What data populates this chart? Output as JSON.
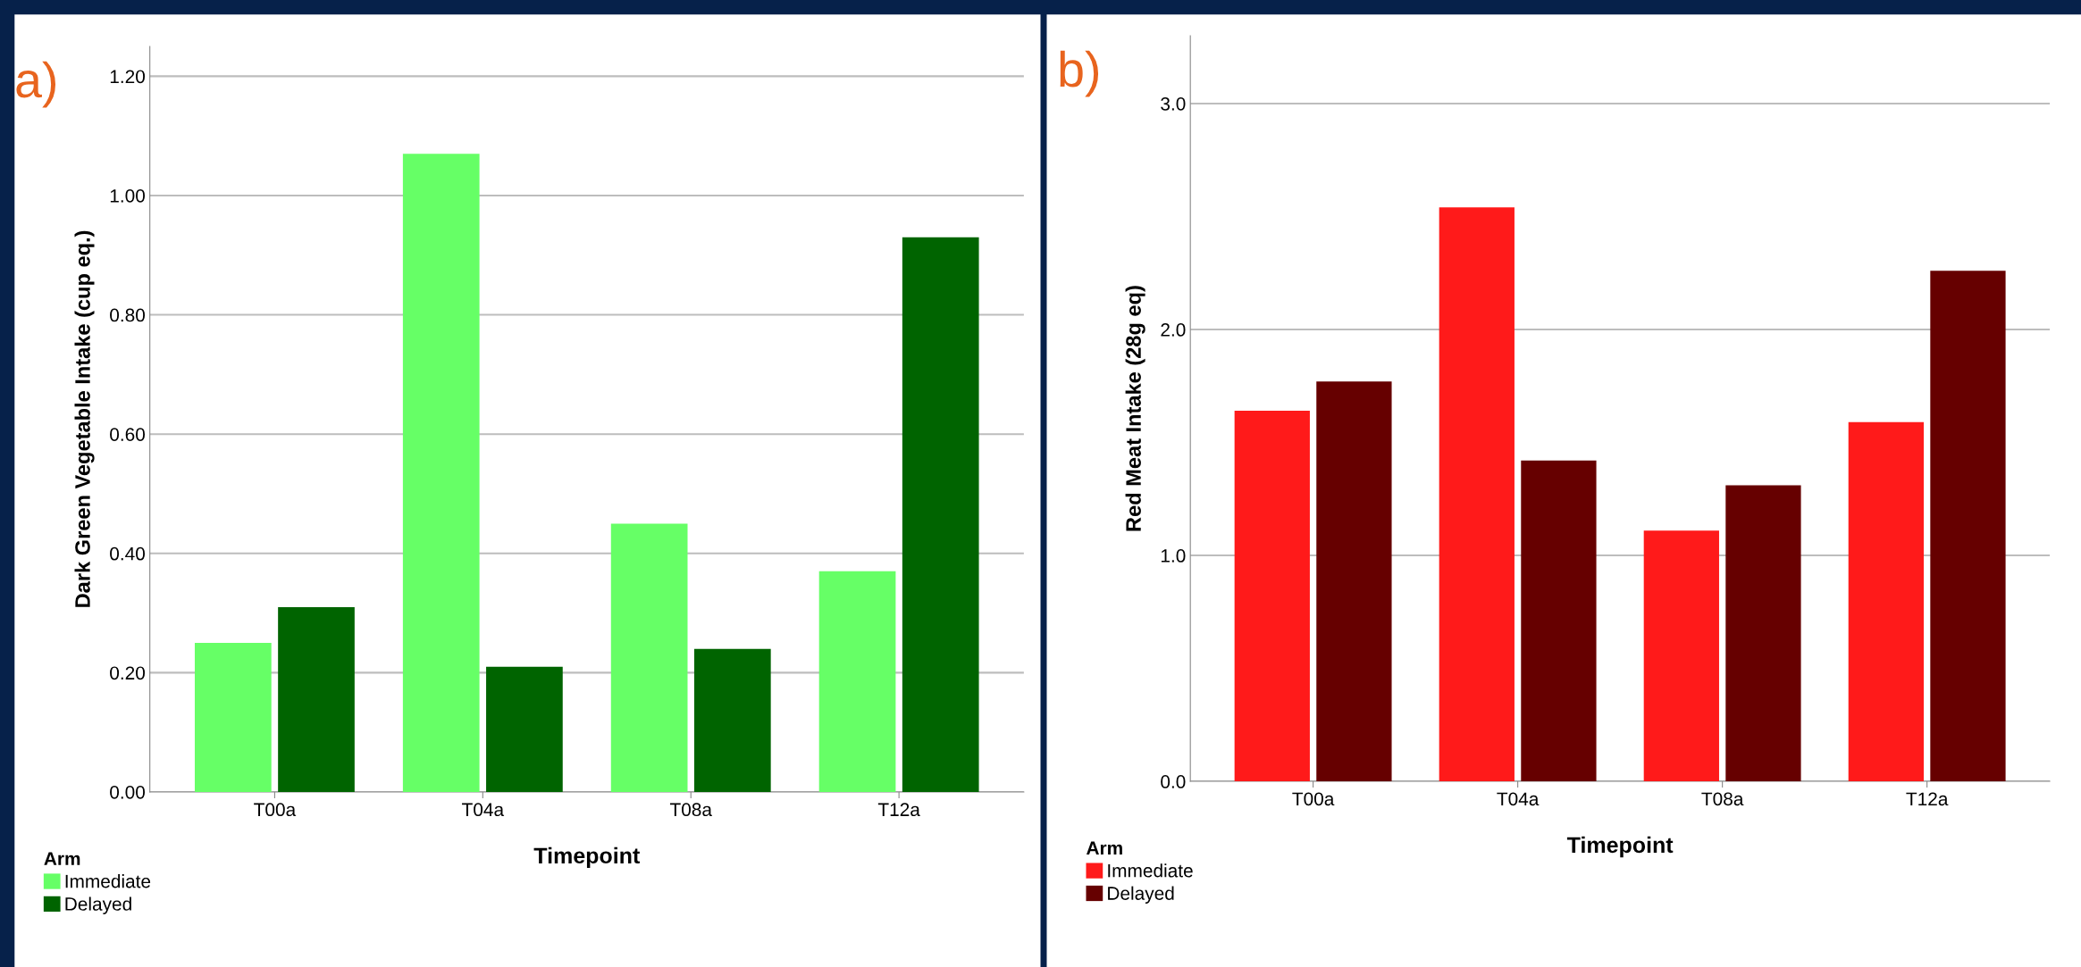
{
  "chart_data": [
    {
      "type": "bar",
      "categories": [
        "T00a",
        "T04a",
        "T08a",
        "T12a"
      ],
      "xlabel": "Timepoint",
      "ylabel": "Dark Green Vegetable Intake (cup eq.)",
      "legend_title": "Arm",
      "legend": "bottom left",
      "grid": "y",
      "annotations": [
        "a)"
      ],
      "ylim": [
        0,
        1.25
      ],
      "yticks": [
        {
          "value": 0,
          "label": "0.00"
        },
        {
          "value": 0.2,
          "label": "0.20"
        },
        {
          "value": 0.4,
          "label": "0.40"
        },
        {
          "value": 0.6,
          "label": "0.60"
        },
        {
          "value": 0.8,
          "label": "0.80"
        },
        {
          "value": 1.0,
          "label": "1.00"
        },
        {
          "value": 1.2,
          "label": "1.20"
        }
      ],
      "series": [
        {
          "name": "Immediate",
          "color": "#66ff66",
          "values": [
            0.25,
            1.07,
            0.45,
            0.37
          ]
        },
        {
          "name": "Delayed",
          "color": "#006400",
          "values": [
            0.31,
            0.21,
            0.24,
            0.93
          ]
        }
      ]
    },
    {
      "type": "bar",
      "categories": [
        "T00a",
        "T04a",
        "T08a",
        "T12a"
      ],
      "xlabel": "Timepoint",
      "ylabel": "Red Meat Intake (28g eq)",
      "legend_title": "Arm",
      "legend": "bottom left",
      "grid": "y",
      "annotations": [
        "b)"
      ],
      "ylim": [
        0,
        3.3
      ],
      "yticks": [
        {
          "value": 0,
          "label": "0.0"
        },
        {
          "value": 1,
          "label": "1.0"
        },
        {
          "value": 2,
          "label": "2.0"
        },
        {
          "value": 3,
          "label": "3.0"
        }
      ],
      "series": [
        {
          "name": "Immediate",
          "color": "#ff1a1a",
          "values": [
            1.64,
            2.54,
            1.11,
            1.59
          ]
        },
        {
          "name": "Delayed",
          "color": "#660000",
          "values": [
            1.77,
            1.42,
            1.31,
            2.26
          ]
        }
      ]
    }
  ]
}
